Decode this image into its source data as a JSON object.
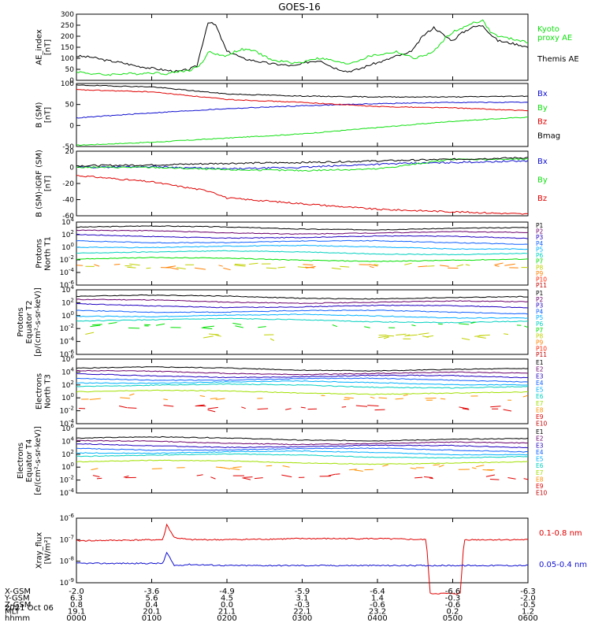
{
  "title": "GOES-16",
  "date_label": "2021 Oct 06",
  "colors": {
    "black": "#000000",
    "blue": "#1010d0",
    "green": "#10e010",
    "red": "#e00000"
  },
  "bottom_axis": {
    "row_labels": [
      "X-GSM",
      "Y-GSM",
      "Z-GSM",
      "MLT",
      "hhmm"
    ],
    "columns": [
      {
        "values": [
          "-2.0",
          "6.3",
          "0.8",
          "19.1",
          "0000"
        ]
      },
      {
        "values": [
          "-3.6",
          "5.6",
          "0.4",
          "20.1",
          "0100"
        ]
      },
      {
        "values": [
          "-4.9",
          "4.5",
          "0.0",
          "21.1",
          "0200"
        ]
      },
      {
        "values": [
          "-5.9",
          "3.1",
          "-0.3",
          "22.1",
          "0300"
        ]
      },
      {
        "values": [
          "-6.4",
          "1.4",
          "-0.6",
          "23.2",
          "0400"
        ]
      },
      {
        "values": [
          "-6.6",
          "-0.3",
          "-0.6",
          "0.2",
          "0500"
        ]
      },
      {
        "values": [
          "-6.3",
          "-2.0",
          "-0.5",
          "1.2",
          "0600"
        ]
      }
    ]
  },
  "chart_data": [
    {
      "type": "line",
      "panel": "ae",
      "ylabel": "AE_index\n[nT]",
      "ylim": [
        0,
        300
      ],
      "yticks": [
        "300",
        "250",
        "200",
        "150",
        "100",
        "50",
        "0"
      ],
      "legend": [
        "Kyoto\nproxy AE",
        "Themis AE"
      ],
      "series": [
        {
          "name": "Themis AE",
          "color": "#000000",
          "x": [
            0,
            0.2,
            0.4,
            0.6,
            0.8,
            1.0,
            1.2,
            1.35,
            1.5,
            1.6,
            1.7,
            1.75,
            1.85,
            2.0,
            2.1,
            2.2,
            2.35,
            2.5,
            2.6,
            2.75,
            2.9,
            3.0,
            3.1,
            3.25,
            3.4,
            3.5,
            3.6,
            3.75,
            3.9,
            4.0,
            4.1,
            4.25,
            4.4,
            4.5,
            4.6,
            4.75,
            4.9,
            5.0,
            5.1,
            5.25,
            5.4,
            5.5,
            5.6,
            5.75,
            5.9,
            6.0
          ],
          "values": [
            110,
            105,
            90,
            80,
            65,
            55,
            45,
            40,
            50,
            65,
            200,
            265,
            250,
            130,
            120,
            100,
            90,
            80,
            75,
            70,
            65,
            75,
            85,
            90,
            60,
            50,
            40,
            50,
            70,
            80,
            90,
            110,
            120,
            150,
            200,
            240,
            200,
            180,
            210,
            240,
            250,
            210,
            180,
            170,
            160,
            150
          ]
        },
        {
          "name": "Kyoto proxy AE",
          "color": "#10e010",
          "x": [
            0,
            0.2,
            0.4,
            0.6,
            0.8,
            1.0,
            1.2,
            1.35,
            1.5,
            1.6,
            1.7,
            1.75,
            1.85,
            2.0,
            2.1,
            2.2,
            2.35,
            2.5,
            2.6,
            2.75,
            2.9,
            3.0,
            3.1,
            3.25,
            3.4,
            3.5,
            3.6,
            3.75,
            3.9,
            4.0,
            4.1,
            4.25,
            4.4,
            4.5,
            4.6,
            4.75,
            4.9,
            5.0,
            5.1,
            5.25,
            5.4,
            5.5,
            5.6,
            5.75,
            5.9,
            6.0
          ],
          "values": [
            40,
            30,
            25,
            30,
            30,
            35,
            30,
            40,
            45,
            60,
            90,
            130,
            120,
            110,
            130,
            140,
            135,
            110,
            90,
            85,
            80,
            80,
            95,
            100,
            90,
            80,
            75,
            90,
            110,
            115,
            120,
            130,
            110,
            100,
            110,
            130,
            190,
            220,
            230,
            260,
            270,
            220,
            200,
            190,
            180,
            170
          ]
        }
      ]
    },
    {
      "type": "line",
      "panel": "bsm",
      "ylabel": "B (SM)\n[nT]",
      "ylim": [
        -50,
        100
      ],
      "yticks": [
        "100",
        "50",
        "0",
        "-50"
      ],
      "legend": [
        "Bx",
        "By",
        "Bz",
        "Bmag"
      ],
      "series": [
        {
          "name": "Bx",
          "color": "#1010d0",
          "x": [
            0,
            1,
            2,
            3,
            4,
            5,
            6
          ],
          "values": [
            18,
            30,
            40,
            47,
            52,
            55,
            55
          ]
        },
        {
          "name": "By",
          "color": "#10e010",
          "x": [
            0,
            1,
            2,
            3,
            4,
            5,
            6
          ],
          "values": [
            -47,
            -40,
            -30,
            -20,
            -5,
            10,
            20
          ]
        },
        {
          "name": "Bz",
          "color": "#e00000",
          "x": [
            0,
            1,
            2,
            3,
            4,
            5,
            6
          ],
          "values": [
            85,
            80,
            62,
            55,
            45,
            42,
            35
          ]
        },
        {
          "name": "Bmag",
          "color": "#000000",
          "x": [
            0,
            1,
            2,
            3,
            4,
            5,
            6
          ],
          "values": [
            96,
            92,
            75,
            70,
            68,
            68,
            70
          ]
        }
      ]
    },
    {
      "type": "line",
      "panel": "bsm_igrf",
      "ylabel": "B (SM)-IGRF (SM)\n[nT]",
      "ylim": [
        -60,
        20
      ],
      "yticks": [
        "20",
        "0",
        "-20",
        "-40",
        "-60"
      ],
      "legend": [
        "Bx",
        "By",
        "Bz"
      ],
      "series": [
        {
          "name": "Bx",
          "color": "#1010d0",
          "x": [
            0,
            1,
            2,
            3,
            4,
            5,
            6
          ],
          "values": [
            0,
            1,
            -2,
            0,
            4,
            6,
            8
          ]
        },
        {
          "name": "By",
          "color": "#10e010",
          "x": [
            0,
            1,
            2,
            3,
            4,
            5,
            6
          ],
          "values": [
            0,
            0,
            -3,
            -4,
            -2,
            10,
            10
          ]
        },
        {
          "name": "Bz",
          "color": "#e00000",
          "x": [
            0,
            1,
            1.8,
            2,
            3,
            4,
            5,
            6
          ],
          "values": [
            -10,
            -18,
            -30,
            -38,
            -45,
            -52,
            -55,
            -58
          ]
        },
        {
          "name": "Bmag",
          "color": "#000000",
          "x": [
            0,
            1,
            2,
            3,
            4,
            5,
            6
          ],
          "values": [
            2,
            3,
            5,
            6,
            8,
            10,
            12
          ]
        }
      ]
    },
    {
      "type": "line",
      "panel": "protons_t1",
      "scale": "log",
      "ylabel": "Protons\nNorth T1",
      "ylim_exp": [
        -6,
        4
      ],
      "yticks": [
        "10^4",
        "10^2",
        "10^0",
        "10^-2",
        "10^-4",
        "10^-6"
      ],
      "legend": [
        "P1",
        "P2",
        "P3",
        "P4",
        "P5",
        "P6",
        "P7",
        "P8",
        "P9",
        "P10",
        "P11"
      ],
      "channel_log_values": [
        3.2,
        2.5,
        1.8,
        1.0,
        0.2,
        -0.7,
        -1.8,
        -3.0,
        -3.0
      ]
    },
    {
      "type": "line",
      "panel": "protons_t2",
      "scale": "log",
      "ylabel": "Protons\nEquator T2\n[p/(cm²-s-sr-keV)]",
      "ylim_exp": [
        -6,
        4
      ],
      "yticks": [
        "10^4",
        "10^2",
        "10^0",
        "10^-2",
        "10^-4",
        "10^-6"
      ],
      "legend": [
        "P1",
        "P2",
        "P3",
        "P4",
        "P5",
        "P6",
        "P7",
        "P8",
        "P9",
        "P10",
        "P11"
      ],
      "channel_log_values": [
        3.0,
        2.3,
        1.6,
        0.8,
        0.1,
        -0.6,
        -1.5,
        -3.2
      ]
    },
    {
      "type": "line",
      "panel": "electrons_t3",
      "scale": "log",
      "ylabel": "Electrons\nNorth T3",
      "ylim_exp": [
        -4,
        6
      ],
      "yticks": [
        "10^6",
        "10^4",
        "10^2",
        "10^0",
        "10^-2",
        "10^-4"
      ],
      "legend": [
        "E1",
        "E2",
        "E3",
        "E4",
        "E5",
        "E6",
        "E7",
        "E8",
        "E9",
        "E10"
      ],
      "channel_log_values": [
        4.6,
        4.0,
        3.5,
        3.0,
        2.5,
        2.0,
        1.0,
        0.0,
        -1.5
      ]
    },
    {
      "type": "line",
      "panel": "electrons_t4",
      "scale": "log",
      "ylabel": "Electrons\nEquator T4\n[e/(cm²-s-sr-keV)]",
      "ylim_exp": [
        -4,
        6
      ],
      "yticks": [
        "10^6",
        "10^4",
        "10^2",
        "10^0",
        "10^-2",
        "10^-4"
      ],
      "legend": [
        "E1",
        "E2",
        "E3",
        "E4",
        "E5",
        "E6",
        "E7",
        "E8",
        "E9",
        "E10"
      ],
      "channel_log_values": [
        4.5,
        3.9,
        3.4,
        2.9,
        2.4,
        1.9,
        0.9,
        -0.1,
        -1.5
      ]
    },
    {
      "type": "line",
      "panel": "xray",
      "scale": "log",
      "ylabel": "Xray_flux\n[W/m²]",
      "ylim_exp": [
        -9,
        -6
      ],
      "yticks": [
        "10^-6",
        "10^-7",
        "10^-8",
        "10^-9"
      ],
      "legend": [
        "0.1-0.8 nm",
        "0.05-0.4 nm"
      ],
      "series": [
        {
          "name": "0.1-0.8 nm",
          "color": "#e00000",
          "x": [
            0,
            1.15,
            1.2,
            1.3,
            1.5,
            2,
            3,
            4,
            4.65,
            4.7,
            5.1,
            5.15,
            6
          ],
          "log_values": [
            -7.05,
            -7.0,
            -6.3,
            -6.9,
            -7.0,
            -7.0,
            -6.95,
            -6.95,
            -7.0,
            -9.5,
            -9.5,
            -7.0,
            -7.0
          ]
        },
        {
          "name": "0.05-0.4 nm",
          "color": "#1010d0",
          "x": [
            0,
            1.15,
            1.2,
            1.3,
            1.5,
            2,
            3,
            4,
            4.68
          ],
          "log_values": [
            -8.1,
            -8.1,
            -7.6,
            -8.2,
            -8.15,
            -8.2,
            -8.2,
            -8.2,
            -8.2
          ]
        }
      ]
    }
  ]
}
